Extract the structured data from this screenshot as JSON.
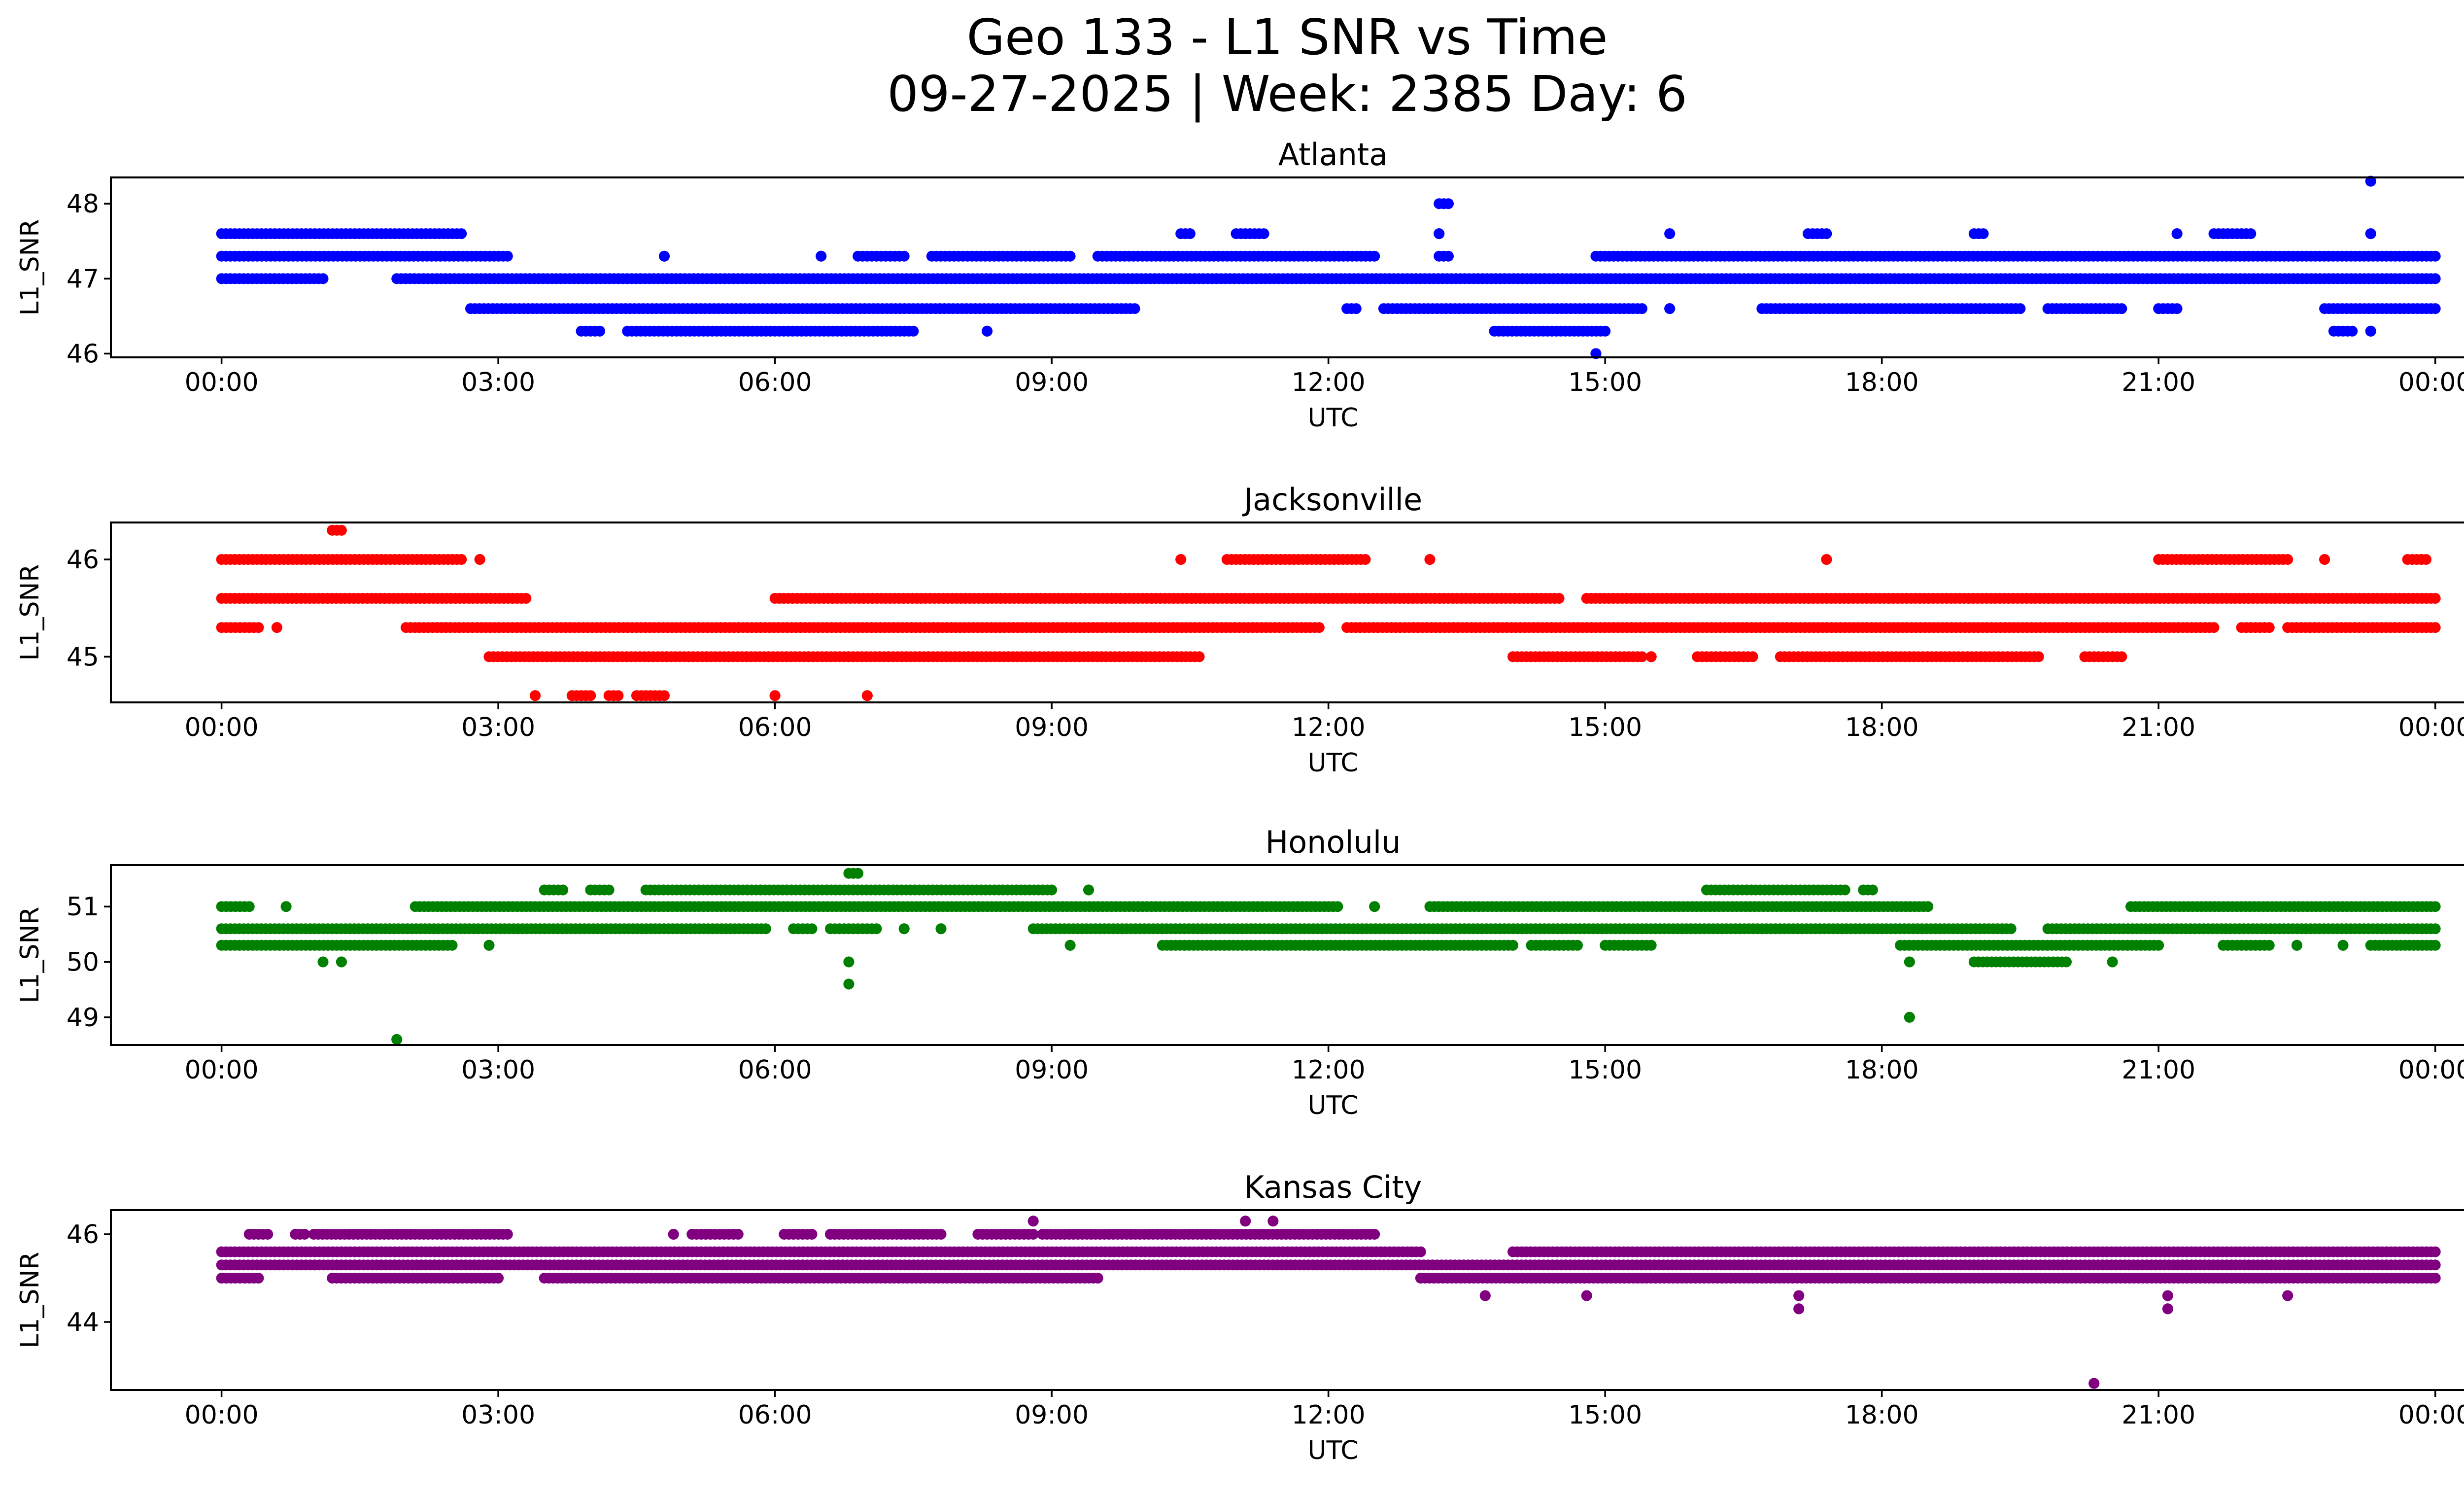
{
  "figure": {
    "title_line1": "Geo 133 - L1 SNR vs Time",
    "title_line2": "09-27-2025 | Week: 2385 Day: 6"
  },
  "chart_data": [
    {
      "type": "scatter",
      "title": "Atlanta",
      "xlabel": "UTC",
      "ylabel": "L1_SNR",
      "color": "#0000ff",
      "xlim_hours": [
        -1.2,
        25.3
      ],
      "ylim": [
        45.95,
        48.35
      ],
      "x_ticks": [
        "00:00",
        "03:00",
        "06:00",
        "09:00",
        "12:00",
        "15:00",
        "18:00",
        "21:00",
        "00:00"
      ],
      "y_ticks": [
        46,
        47,
        48
      ],
      "level_segments": [
        {
          "y": 47.3,
          "segments": [
            [
              0.0,
              3.1
            ],
            [
              4.8,
              4.8
            ],
            [
              6.5,
              6.5
            ],
            [
              6.9,
              7.4
            ],
            [
              7.7,
              9.2
            ],
            [
              9.5,
              12.5
            ],
            [
              13.2,
              13.3
            ],
            [
              14.9,
              24.0
            ]
          ]
        },
        {
          "y": 47.0,
          "segments": [
            [
              0.0,
              1.1
            ],
            [
              1.9,
              24.0
            ]
          ]
        },
        {
          "y": 46.6,
          "segments": [
            [
              2.7,
              9.9
            ],
            [
              12.2,
              12.3
            ],
            [
              12.6,
              15.4
            ],
            [
              15.7,
              15.7
            ],
            [
              16.7,
              19.5
            ],
            [
              19.8,
              20.6
            ],
            [
              21.0,
              21.2
            ],
            [
              22.8,
              24.0
            ]
          ]
        },
        {
          "y": 47.6,
          "segments": [
            [
              0.0,
              2.6
            ],
            [
              10.4,
              10.5
            ],
            [
              11.0,
              11.3
            ],
            [
              13.2,
              13.2
            ],
            [
              15.7,
              15.7
            ],
            [
              17.2,
              17.4
            ],
            [
              19.0,
              19.1
            ],
            [
              21.2,
              21.2
            ],
            [
              21.6,
              22.0
            ],
            [
              23.3,
              23.3
            ]
          ]
        },
        {
          "y": 46.3,
          "segments": [
            [
              3.9,
              4.1
            ],
            [
              4.4,
              7.5
            ],
            [
              8.3,
              8.3
            ],
            [
              13.8,
              15.0
            ],
            [
              22.9,
              23.1
            ],
            [
              23.3,
              23.3
            ]
          ]
        },
        {
          "y": 46.0,
          "segments": [
            [
              14.9,
              14.9
            ]
          ]
        },
        {
          "y": 48.0,
          "segments": [
            [
              13.2,
              13.3
            ]
          ]
        },
        {
          "y": 48.3,
          "segments": [
            [
              23.3,
              23.3
            ]
          ]
        }
      ]
    },
    {
      "type": "scatter",
      "title": "Jacksonville",
      "xlabel": "UTC",
      "ylabel": "L1_SNR",
      "color": "#ff0000",
      "xlim_hours": [
        -1.2,
        25.3
      ],
      "ylim": [
        44.53,
        46.38
      ],
      "x_ticks": [
        "00:00",
        "03:00",
        "06:00",
        "09:00",
        "12:00",
        "15:00",
        "18:00",
        "21:00",
        "00:00"
      ],
      "y_ticks": [
        45,
        46
      ],
      "level_segments": [
        {
          "y": 45.6,
          "segments": [
            [
              0.0,
              3.3
            ],
            [
              6.0,
              14.5
            ],
            [
              14.8,
              24.0
            ]
          ]
        },
        {
          "y": 45.3,
          "segments": [
            [
              0.0,
              0.4
            ],
            [
              0.6,
              0.6
            ],
            [
              2.0,
              11.9
            ],
            [
              12.2,
              21.6
            ],
            [
              21.9,
              22.2
            ],
            [
              22.4,
              24.0
            ]
          ]
        },
        {
          "y": 46.0,
          "segments": [
            [
              0.0,
              2.6
            ],
            [
              2.8,
              2.8
            ],
            [
              10.4,
              10.4
            ],
            [
              10.9,
              12.4
            ],
            [
              13.1,
              13.1
            ],
            [
              17.4,
              17.4
            ],
            [
              21.0,
              22.4
            ],
            [
              22.8,
              22.8
            ],
            [
              23.7,
              23.9
            ]
          ]
        },
        {
          "y": 45.0,
          "segments": [
            [
              2.9,
              10.6
            ],
            [
              14.0,
              15.4
            ],
            [
              15.5,
              15.5
            ],
            [
              16.0,
              16.6
            ],
            [
              16.9,
              19.7
            ],
            [
              20.2,
              20.6
            ]
          ]
        },
        {
          "y": 46.3,
          "segments": [
            [
              1.2,
              1.3
            ]
          ]
        },
        {
          "y": 44.6,
          "segments": [
            [
              3.4,
              3.4
            ],
            [
              3.8,
              4.0
            ],
            [
              4.2,
              4.3
            ],
            [
              4.5,
              4.8
            ],
            [
              6.0,
              6.0
            ],
            [
              7.0,
              7.0
            ]
          ]
        }
      ]
    },
    {
      "type": "scatter",
      "title": "Honolulu",
      "xlabel": "UTC",
      "ylabel": "L1_SNR",
      "color": "#008000",
      "xlim_hours": [
        -1.2,
        25.3
      ],
      "ylim": [
        48.5,
        51.75
      ],
      "x_ticks": [
        "00:00",
        "03:00",
        "06:00",
        "09:00",
        "12:00",
        "15:00",
        "18:00",
        "21:00",
        "00:00"
      ],
      "y_ticks": [
        49,
        50,
        51
      ],
      "level_segments": [
        {
          "y": 50.6,
          "segments": [
            [
              0.0,
              5.9
            ],
            [
              6.2,
              6.4
            ],
            [
              6.6,
              7.1
            ],
            [
              7.4,
              7.4
            ],
            [
              7.8,
              7.8
            ],
            [
              8.8,
              19.4
            ],
            [
              19.8,
              24.0
            ]
          ]
        },
        {
          "y": 51.0,
          "segments": [
            [
              0.0,
              0.3
            ],
            [
              0.7,
              0.7
            ],
            [
              2.1,
              12.1
            ],
            [
              12.5,
              12.5
            ],
            [
              13.1,
              18.5
            ],
            [
              20.7,
              24.0
            ]
          ]
        },
        {
          "y": 50.3,
          "segments": [
            [
              0.0,
              2.5
            ],
            [
              2.9,
              2.9
            ],
            [
              9.2,
              9.2
            ],
            [
              10.2,
              14.0
            ],
            [
              14.2,
              14.7
            ],
            [
              15.0,
              15.5
            ],
            [
              18.2,
              21.0
            ],
            [
              21.7,
              22.2
            ],
            [
              22.5,
              22.5
            ],
            [
              23.0,
              23.0
            ],
            [
              23.3,
              24.0
            ]
          ]
        },
        {
          "y": 51.3,
          "segments": [
            [
              3.5,
              3.7
            ],
            [
              4.0,
              4.2
            ],
            [
              4.6,
              9.0
            ],
            [
              9.4,
              9.4
            ],
            [
              16.1,
              17.6
            ],
            [
              17.8,
              17.9
            ]
          ]
        },
        {
          "y": 50.0,
          "segments": [
            [
              1.1,
              1.1
            ],
            [
              1.3,
              1.3
            ],
            [
              6.8,
              6.8
            ],
            [
              18.3,
              18.3
            ],
            [
              19.0,
              20.0
            ],
            [
              20.5,
              20.5
            ]
          ]
        },
        {
          "y": 51.6,
          "segments": [
            [
              6.8,
              6.9
            ]
          ]
        },
        {
          "y": 49.6,
          "segments": [
            [
              6.8,
              6.8
            ]
          ]
        },
        {
          "y": 49.0,
          "segments": [
            [
              18.3,
              18.3
            ]
          ]
        },
        {
          "y": 48.6,
          "segments": [
            [
              1.9,
              1.9
            ]
          ]
        }
      ]
    },
    {
      "type": "scatter",
      "title": "Kansas City",
      "xlabel": "UTC",
      "ylabel": "L1_SNR",
      "color": "#800080",
      "xlim_hours": [
        -1.2,
        25.3
      ],
      "ylim": [
        42.45,
        46.55
      ],
      "x_ticks": [
        "00:00",
        "03:00",
        "06:00",
        "09:00",
        "12:00",
        "15:00",
        "18:00",
        "21:00",
        "00:00"
      ],
      "y_ticks": [
        44,
        46
      ],
      "level_segments": [
        {
          "y": 45.3,
          "segments": [
            [
              0.0,
              24.0
            ]
          ]
        },
        {
          "y": 45.6,
          "segments": [
            [
              0.0,
              13.0
            ],
            [
              14.0,
              24.0
            ]
          ]
        },
        {
          "y": 45.0,
          "segments": [
            [
              0.0,
              0.4
            ],
            [
              1.2,
              3.0
            ],
            [
              3.5,
              9.5
            ],
            [
              13.0,
              24.0
            ]
          ]
        },
        {
          "y": 46.0,
          "segments": [
            [
              0.3,
              0.5
            ],
            [
              0.8,
              0.9
            ],
            [
              1.0,
              3.1
            ],
            [
              4.9,
              4.9
            ],
            [
              5.1,
              5.6
            ],
            [
              6.1,
              6.4
            ],
            [
              6.6,
              7.8
            ],
            [
              8.2,
              8.8
            ],
            [
              8.9,
              12.5
            ]
          ]
        },
        {
          "y": 46.3,
          "segments": [
            [
              8.8,
              8.8
            ],
            [
              11.1,
              11.1
            ],
            [
              11.4,
              11.4
            ]
          ]
        },
        {
          "y": 44.6,
          "segments": [
            [
              13.7,
              13.7
            ],
            [
              14.8,
              14.8
            ],
            [
              17.1,
              17.1
            ],
            [
              21.1,
              21.1
            ],
            [
              22.4,
              22.4
            ]
          ]
        },
        {
          "y": 44.3,
          "segments": [
            [
              17.1,
              17.1
            ],
            [
              21.1,
              21.1
            ]
          ]
        },
        {
          "y": 42.6,
          "segments": [
            [
              20.3,
              20.3
            ]
          ]
        }
      ]
    }
  ]
}
